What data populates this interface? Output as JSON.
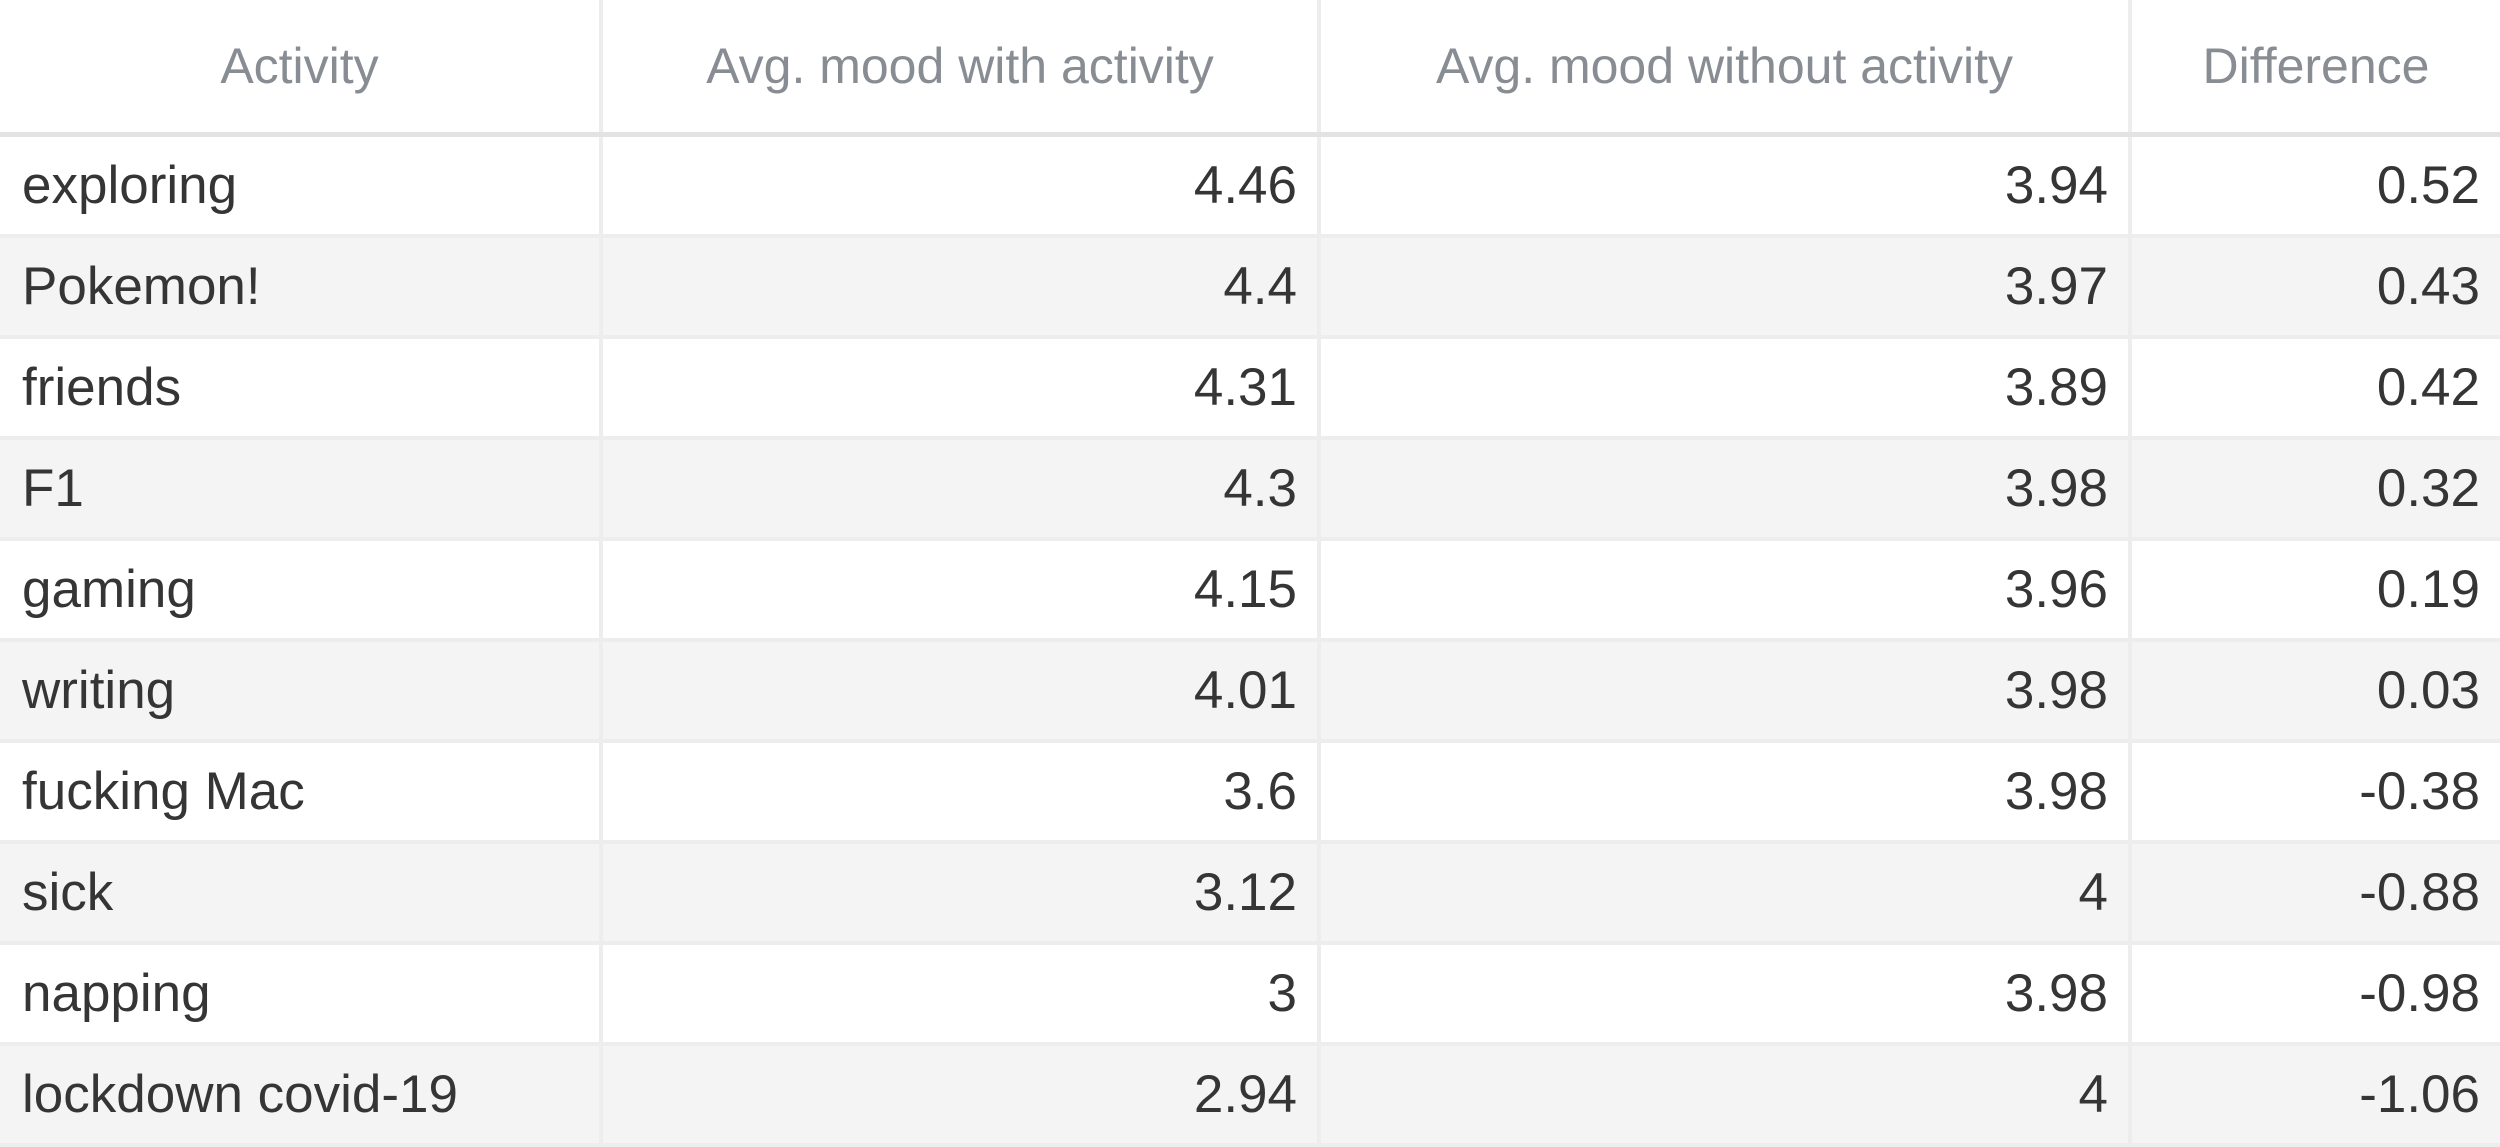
{
  "chart_data": {
    "type": "table",
    "columns": [
      "Activity",
      "Avg. mood with activity",
      "Avg. mood without activity",
      "Difference"
    ],
    "rows": [
      [
        "exploring",
        "4.46",
        "3.94",
        "0.52"
      ],
      [
        "Pokemon!",
        "4.4",
        "3.97",
        "0.43"
      ],
      [
        "friends",
        "4.31",
        "3.89",
        "0.42"
      ],
      [
        "F1",
        "4.3",
        "3.98",
        "0.32"
      ],
      [
        "gaming",
        "4.15",
        "3.96",
        "0.19"
      ],
      [
        "writing",
        "4.01",
        "3.98",
        "0.03"
      ],
      [
        "fucking Mac",
        "3.6",
        "3.98",
        "-0.38"
      ],
      [
        "sick",
        "3.12",
        "4",
        "-0.88"
      ],
      [
        "napping",
        "3",
        "3.98",
        "-0.98"
      ],
      [
        "lockdown covid-19",
        "2.94",
        "4",
        "-1.06"
      ]
    ]
  },
  "colors": {
    "header_text": "#888d93",
    "cell_text": "#353535",
    "stripe": "#f4f4f4",
    "grid": "#ededed"
  }
}
